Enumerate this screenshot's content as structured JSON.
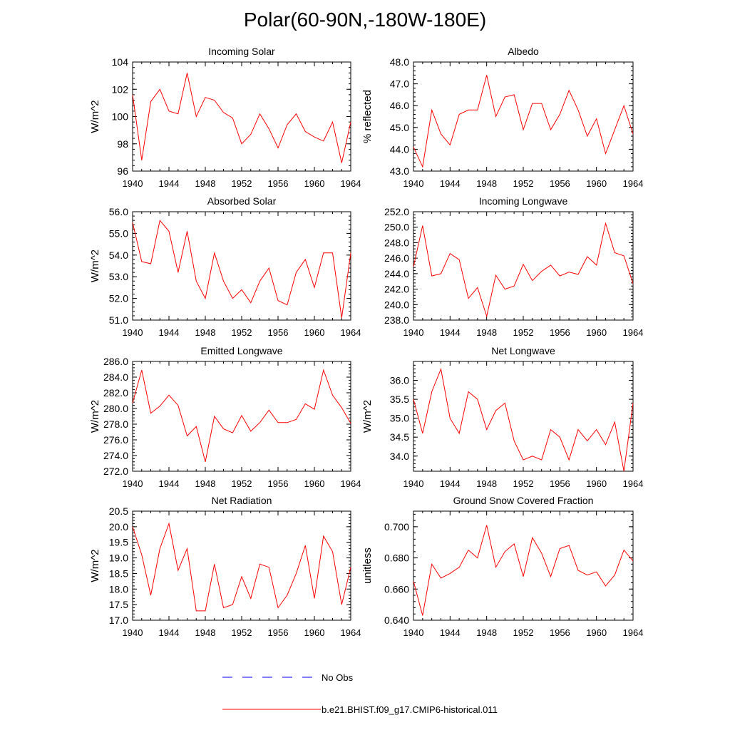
{
  "page": {
    "title": "Polar(60-90N,-180W-180E)"
  },
  "legend": [
    {
      "label": "No Obs",
      "color": "#0000ff",
      "dash": true
    },
    {
      "label": "b.e21.BHIST.f09_g17.CMIP6-historical.011",
      "color": "#ff0000",
      "dash": false
    }
  ],
  "chart_data": [
    {
      "type": "line",
      "title": "Incoming Solar",
      "ylabel": "W/m^2",
      "xlim": [
        1940,
        1964
      ],
      "ylim": [
        96,
        104
      ],
      "xticks": [
        "1940",
        "1944",
        "1948",
        "1952",
        "1956",
        "1960",
        "1964"
      ],
      "yticks": [
        "96",
        "98",
        "100",
        "102",
        "104"
      ],
      "series": [
        {
          "color": "#ff0000",
          "x": [
            1940,
            1941,
            1942,
            1943,
            1944,
            1945,
            1946,
            1947,
            1948,
            1949,
            1950,
            1951,
            1952,
            1953,
            1954,
            1955,
            1956,
            1957,
            1958,
            1959,
            1960,
            1961,
            1962,
            1963,
            1964
          ],
          "values": [
            101.6,
            96.8,
            101.1,
            102.0,
            100.4,
            100.2,
            103.2,
            100.0,
            101.4,
            101.2,
            100.3,
            99.9,
            98.0,
            98.7,
            100.2,
            99.1,
            97.7,
            99.4,
            100.2,
            98.9,
            98.5,
            98.2,
            99.6,
            96.6,
            99.6
          ]
        }
      ]
    },
    {
      "type": "line",
      "title": "Albedo",
      "ylabel": "% reflected",
      "xlim": [
        1940,
        1964
      ],
      "ylim": [
        43.0,
        48.0
      ],
      "xticks": [
        "1940",
        "1944",
        "1948",
        "1952",
        "1956",
        "1960",
        "1964"
      ],
      "yticks": [
        "43.0",
        "44.0",
        "45.0",
        "46.0",
        "47.0",
        "48.0"
      ],
      "series": [
        {
          "color": "#ff0000",
          "x": [
            1940,
            1941,
            1942,
            1943,
            1944,
            1945,
            1946,
            1947,
            1948,
            1949,
            1950,
            1951,
            1952,
            1953,
            1954,
            1955,
            1956,
            1957,
            1958,
            1959,
            1960,
            1961,
            1962,
            1963,
            1964
          ],
          "values": [
            44.1,
            43.2,
            45.8,
            44.7,
            44.2,
            45.6,
            45.8,
            45.8,
            47.4,
            45.5,
            46.4,
            46.5,
            44.9,
            46.1,
            46.1,
            44.9,
            45.6,
            46.7,
            45.8,
            44.6,
            45.4,
            43.8,
            44.9,
            46.0,
            44.7
          ]
        }
      ]
    },
    {
      "type": "line",
      "title": "Absorbed Solar",
      "ylabel": "W/m^2",
      "xlim": [
        1940,
        1964
      ],
      "ylim": [
        51.0,
        56.0
      ],
      "xticks": [
        "1940",
        "1944",
        "1948",
        "1952",
        "1956",
        "1960",
        "1964"
      ],
      "yticks": [
        "51.0",
        "52.0",
        "53.0",
        "54.0",
        "55.0",
        "56.0"
      ],
      "series": [
        {
          "color": "#ff0000",
          "x": [
            1940,
            1941,
            1942,
            1943,
            1944,
            1945,
            1946,
            1947,
            1948,
            1949,
            1950,
            1951,
            1952,
            1953,
            1954,
            1955,
            1956,
            1957,
            1958,
            1959,
            1960,
            1961,
            1962,
            1963,
            1964
          ],
          "values": [
            55.5,
            53.7,
            53.6,
            55.6,
            55.1,
            53.2,
            55.1,
            52.8,
            52.0,
            54.1,
            52.8,
            52.0,
            52.4,
            51.8,
            52.8,
            53.4,
            51.9,
            51.7,
            53.2,
            53.8,
            52.5,
            54.1,
            54.1,
            51.1,
            54.1
          ]
        }
      ]
    },
    {
      "type": "line",
      "title": "Incoming Longwave",
      "ylabel": "",
      "xlim": [
        1940,
        1964
      ],
      "ylim": [
        238.0,
        252.0
      ],
      "xticks": [
        "1940",
        "1944",
        "1948",
        "1952",
        "1956",
        "1960",
        "1964"
      ],
      "yticks": [
        "238.0",
        "240.0",
        "242.0",
        "244.0",
        "246.0",
        "248.0",
        "250.0",
        "252.0"
      ],
      "series": [
        {
          "color": "#ff0000",
          "x": [
            1940,
            1941,
            1942,
            1943,
            1944,
            1945,
            1946,
            1947,
            1948,
            1949,
            1950,
            1951,
            1952,
            1953,
            1954,
            1955,
            1956,
            1957,
            1958,
            1959,
            1960,
            1961,
            1962,
            1963,
            1964
          ],
          "values": [
            244.9,
            250.2,
            243.7,
            244.0,
            246.6,
            245.8,
            240.8,
            242.2,
            238.5,
            243.8,
            242.0,
            242.4,
            245.2,
            243.1,
            244.3,
            245.1,
            243.7,
            244.2,
            243.9,
            246.2,
            245.1,
            250.5,
            246.7,
            246.3,
            242.7
          ]
        }
      ]
    },
    {
      "type": "line",
      "title": "Emitted Longwave",
      "ylabel": "W/m^2",
      "xlim": [
        1940,
        1964
      ],
      "ylim": [
        272.0,
        286.0
      ],
      "xticks": [
        "1940",
        "1944",
        "1948",
        "1952",
        "1956",
        "1960",
        "1964"
      ],
      "yticks": [
        "272.0",
        "274.0",
        "276.0",
        "278.0",
        "280.0",
        "282.0",
        "284.0",
        "286.0"
      ],
      "series": [
        {
          "color": "#ff0000",
          "x": [
            1940,
            1941,
            1942,
            1943,
            1944,
            1945,
            1946,
            1947,
            1948,
            1949,
            1950,
            1951,
            1952,
            1953,
            1954,
            1955,
            1956,
            1957,
            1958,
            1959,
            1960,
            1961,
            1962,
            1963,
            1964
          ],
          "values": [
            280.7,
            284.9,
            279.4,
            280.3,
            281.7,
            280.4,
            276.5,
            277.7,
            273.2,
            279.0,
            277.4,
            276.9,
            279.1,
            277.1,
            278.2,
            279.8,
            278.2,
            278.2,
            278.6,
            280.6,
            279.9,
            284.9,
            281.7,
            280.1,
            278.1
          ]
        }
      ]
    },
    {
      "type": "line",
      "title": "Net Longwave",
      "ylabel": "W/m^2",
      "xlim": [
        1940,
        1964
      ],
      "ylim": [
        33.6,
        36.5
      ],
      "xticks": [
        "1940",
        "1944",
        "1948",
        "1952",
        "1956",
        "1960",
        "1964"
      ],
      "yticks": [
        "34.0",
        "34.5",
        "35.0",
        "35.5",
        "36.0"
      ],
      "ytick_values": [
        34.0,
        34.5,
        35.0,
        35.5,
        36.0
      ],
      "series": [
        {
          "color": "#ff0000",
          "x": [
            1940,
            1941,
            1942,
            1943,
            1944,
            1945,
            1946,
            1947,
            1948,
            1949,
            1950,
            1951,
            1952,
            1953,
            1954,
            1955,
            1956,
            1957,
            1958,
            1959,
            1960,
            1961,
            1962,
            1963,
            1964
          ],
          "values": [
            35.5,
            34.6,
            35.7,
            36.3,
            35.0,
            34.6,
            35.7,
            35.5,
            34.7,
            35.2,
            35.4,
            34.4,
            33.9,
            34.0,
            33.9,
            34.7,
            34.5,
            33.9,
            34.7,
            34.4,
            34.7,
            34.3,
            34.9,
            33.6,
            35.4
          ]
        }
      ]
    },
    {
      "type": "line",
      "title": "Net Radiation",
      "ylabel": "W/m^2",
      "xlim": [
        1940,
        1964
      ],
      "ylim": [
        17.0,
        20.5
      ],
      "xticks": [
        "1940",
        "1944",
        "1948",
        "1952",
        "1956",
        "1960",
        "1964"
      ],
      "yticks": [
        "17.0",
        "17.5",
        "18.0",
        "18.5",
        "19.0",
        "19.5",
        "20.0",
        "20.5"
      ],
      "series": [
        {
          "color": "#ff0000",
          "x": [
            1940,
            1941,
            1942,
            1943,
            1944,
            1945,
            1946,
            1947,
            1948,
            1949,
            1950,
            1951,
            1952,
            1953,
            1954,
            1955,
            1956,
            1957,
            1958,
            1959,
            1960,
            1961,
            1962,
            1963,
            1964
          ],
          "values": [
            20.0,
            19.1,
            17.8,
            19.3,
            20.1,
            18.6,
            19.3,
            17.3,
            17.3,
            18.8,
            17.4,
            17.5,
            18.4,
            17.7,
            18.8,
            18.7,
            17.4,
            17.8,
            18.5,
            19.4,
            17.7,
            19.7,
            19.2,
            17.5,
            18.7
          ]
        }
      ]
    },
    {
      "type": "line",
      "title": "Ground Snow Covered Fraction",
      "ylabel": "unitless",
      "xlim": [
        1940,
        1964
      ],
      "ylim": [
        0.64,
        0.71
      ],
      "xticks": [
        "1940",
        "1944",
        "1948",
        "1952",
        "1956",
        "1960",
        "1964"
      ],
      "yticks": [
        "0.640",
        "0.660",
        "0.680",
        "0.700"
      ],
      "ytick_values": [
        0.64,
        0.66,
        0.68,
        0.7
      ],
      "series": [
        {
          "color": "#ff0000",
          "x": [
            1940,
            1941,
            1942,
            1943,
            1944,
            1945,
            1946,
            1947,
            1948,
            1949,
            1950,
            1951,
            1952,
            1953,
            1954,
            1955,
            1956,
            1957,
            1958,
            1959,
            1960,
            1961,
            1962,
            1963,
            1964
          ],
          "values": [
            0.665,
            0.643,
            0.676,
            0.667,
            0.67,
            0.674,
            0.685,
            0.68,
            0.701,
            0.674,
            0.684,
            0.689,
            0.668,
            0.693,
            0.683,
            0.668,
            0.686,
            0.688,
            0.672,
            0.669,
            0.671,
            0.662,
            0.669,
            0.685,
            0.678
          ]
        }
      ]
    }
  ]
}
